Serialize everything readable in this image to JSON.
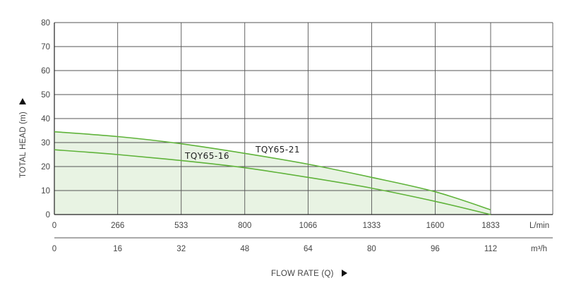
{
  "chart_data": {
    "type": "line",
    "ylabel": "TOTAL HEAD (m)",
    "xlabel": "FLOW RATE (Q)",
    "ylim": [
      0,
      80
    ],
    "yticks": [
      0,
      10,
      20,
      30,
      40,
      50,
      60,
      70,
      80
    ],
    "x_lmin_ticks": [
      "0",
      "266",
      "533",
      "800",
      "1066",
      "1333",
      "1600",
      "1833"
    ],
    "x_lmin_unit": "L/min",
    "x_m3h_ticks": [
      "0",
      "16",
      "32",
      "48",
      "64",
      "80",
      "96",
      "112"
    ],
    "x_m3h_unit": "m³/h",
    "grid": true,
    "series": [
      {
        "name": "TQY65-21",
        "x": [
          0,
          266,
          533,
          800,
          1066,
          1333,
          1600,
          1833
        ],
        "y": [
          34.5,
          32.5,
          29.5,
          25.5,
          21,
          15.5,
          9.5,
          2
        ],
        "color": "#5fb33a"
      },
      {
        "name": "TQY65-16",
        "x": [
          0,
          266,
          533,
          800,
          1066,
          1333,
          1600,
          1833
        ],
        "y": [
          27,
          25,
          22.5,
          19.5,
          15.5,
          11,
          5.5,
          0
        ],
        "color": "#5fb33a"
      }
    ],
    "fill_color": "#e8f3e3",
    "grid_color": "#555555"
  }
}
